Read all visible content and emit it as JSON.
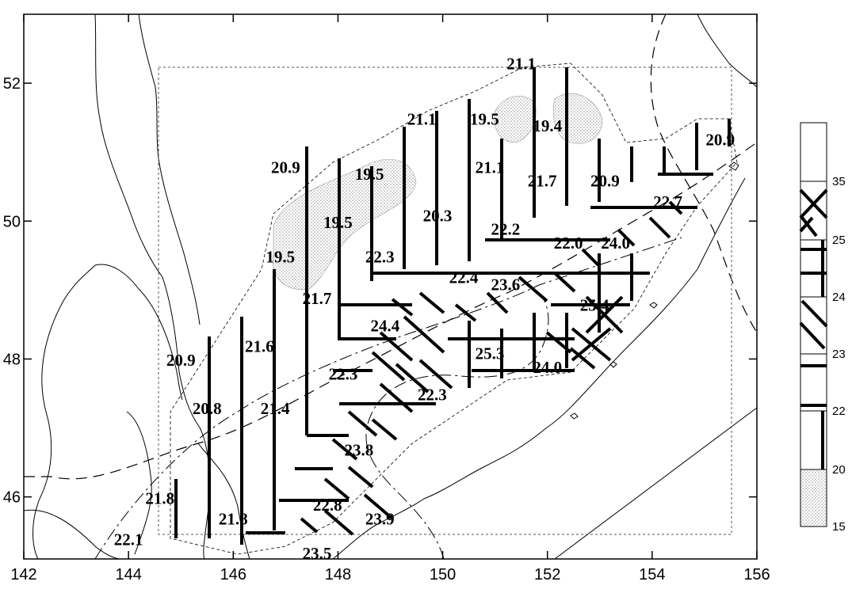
{
  "map": {
    "x_ticks": [
      "142",
      "144",
      "146",
      "148",
      "150",
      "152",
      "154",
      "156"
    ],
    "y_ticks": [
      "46",
      "48",
      "50",
      "52"
    ],
    "x_range": [
      142,
      156
    ],
    "y_range": [
      45.1,
      53.0
    ],
    "value_labels": [
      {
        "text": "21.1",
        "lon": 151.5,
        "lat": 52.2
      },
      {
        "text": "21.1",
        "lon": 149.6,
        "lat": 51.4
      },
      {
        "text": "19.5",
        "lon": 150.8,
        "lat": 51.4
      },
      {
        "text": "19.4",
        "lon": 152.0,
        "lat": 51.3
      },
      {
        "text": "20.9",
        "lon": 155.3,
        "lat": 51.1
      },
      {
        "text": "20.9",
        "lon": 147.0,
        "lat": 50.7
      },
      {
        "text": "19.5",
        "lon": 148.6,
        "lat": 50.6
      },
      {
        "text": "21.1",
        "lon": 150.9,
        "lat": 50.7
      },
      {
        "text": "21.7",
        "lon": 151.9,
        "lat": 50.5
      },
      {
        "text": "20.9",
        "lon": 153.1,
        "lat": 50.5
      },
      {
        "text": "22.7",
        "lon": 154.3,
        "lat": 50.2
      },
      {
        "text": "20.3",
        "lon": 149.9,
        "lat": 50.0
      },
      {
        "text": "19.5",
        "lon": 148.0,
        "lat": 49.9
      },
      {
        "text": "22.2",
        "lon": 151.2,
        "lat": 49.8
      },
      {
        "text": "22.0",
        "lon": 152.4,
        "lat": 49.6
      },
      {
        "text": "24.0",
        "lon": 153.3,
        "lat": 49.6
      },
      {
        "text": "19.5",
        "lon": 146.9,
        "lat": 49.4
      },
      {
        "text": "22.3",
        "lon": 148.8,
        "lat": 49.4
      },
      {
        "text": "22.4",
        "lon": 150.4,
        "lat": 49.1
      },
      {
        "text": "23.6",
        "lon": 151.2,
        "lat": 49.0
      },
      {
        "text": "21.7",
        "lon": 147.6,
        "lat": 48.8
      },
      {
        "text": "25.4",
        "lon": 152.9,
        "lat": 48.7
      },
      {
        "text": "24.4",
        "lon": 148.9,
        "lat": 48.4
      },
      {
        "text": "21.6",
        "lon": 146.5,
        "lat": 48.1
      },
      {
        "text": "25.3",
        "lon": 150.9,
        "lat": 48.0
      },
      {
        "text": "20.9",
        "lon": 145.0,
        "lat": 47.9
      },
      {
        "text": "24.0",
        "lon": 152.0,
        "lat": 47.8
      },
      {
        "text": "22.3",
        "lon": 148.1,
        "lat": 47.7
      },
      {
        "text": "22.3",
        "lon": 149.8,
        "lat": 47.4
      },
      {
        "text": "20.8",
        "lon": 145.5,
        "lat": 47.2
      },
      {
        "text": "21.4",
        "lon": 146.8,
        "lat": 47.2
      },
      {
        "text": "23.8",
        "lon": 148.4,
        "lat": 46.6
      },
      {
        "text": "21.8",
        "lon": 144.6,
        "lat": 45.9
      },
      {
        "text": "22.8",
        "lon": 147.8,
        "lat": 45.8
      },
      {
        "text": "23.9",
        "lon": 148.8,
        "lat": 45.6
      },
      {
        "text": "21.8",
        "lon": 146.0,
        "lat": 45.6
      },
      {
        "text": "22.1",
        "lon": 144.0,
        "lat": 45.3
      },
      {
        "text": "23.5",
        "lon": 147.6,
        "lat": 45.1
      }
    ]
  },
  "legend": {
    "labels": [
      "35",
      "25",
      "24",
      "23",
      "22",
      "20",
      "15"
    ]
  }
}
